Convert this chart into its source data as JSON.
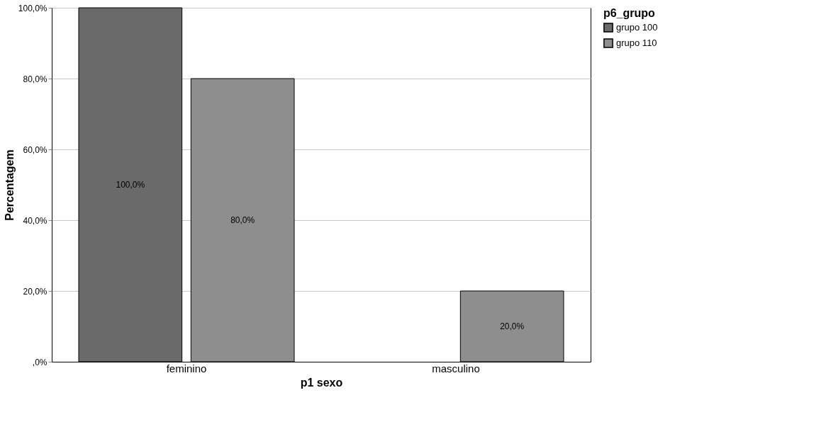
{
  "chart_data": {
    "type": "bar",
    "xlabel": "p1 sexo",
    "ylabel": "Percentagem",
    "legend_title": "p6_grupo",
    "categories": [
      "feminino",
      "masculino"
    ],
    "series": [
      {
        "name": "grupo 100",
        "color": "#6a6a6a",
        "values": [
          100,
          null
        ],
        "value_labels": [
          "100,0%",
          null
        ]
      },
      {
        "name": "grupo 110",
        "color": "#8e8e8e",
        "values": [
          80,
          20
        ],
        "value_labels": [
          "80,0%",
          "20,0%"
        ]
      }
    ],
    "ylim": [
      0,
      100
    ],
    "yticks": [
      {
        "value": 0,
        "label": ",0%"
      },
      {
        "value": 20,
        "label": "20,0%"
      },
      {
        "value": 40,
        "label": "40,0%"
      },
      {
        "value": 60,
        "label": "60,0%"
      },
      {
        "value": 80,
        "label": "80,0%"
      },
      {
        "value": 100,
        "label": "100,0%"
      }
    ],
    "grid": "y",
    "legend": "top right"
  }
}
